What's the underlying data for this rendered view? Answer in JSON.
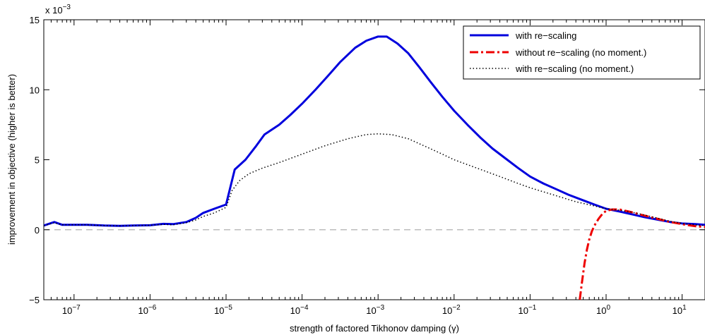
{
  "chart_data": {
    "type": "line",
    "xscale": "log",
    "xlim": [
      4e-08,
      20
    ],
    "ylim": [
      -5,
      15
    ],
    "y_multiplier_label": "x 10",
    "y_multiplier_exp": "−3",
    "xlabel": "strength of factored Tikhonov damping (γ)",
    "ylabel": "improvement in objective (higher is better)",
    "xticks": [
      {
        "value": 1e-07,
        "base": "10",
        "exp": "−7"
      },
      {
        "value": 1e-06,
        "base": "10",
        "exp": "−6"
      },
      {
        "value": 1e-05,
        "base": "10",
        "exp": "−5"
      },
      {
        "value": 0.0001,
        "base": "10",
        "exp": "−4"
      },
      {
        "value": 0.001,
        "base": "10",
        "exp": "−3"
      },
      {
        "value": 0.01,
        "base": "10",
        "exp": "−2"
      },
      {
        "value": 0.1,
        "base": "10",
        "exp": "−1"
      },
      {
        "value": 1,
        "base": "10",
        "exp": "0"
      },
      {
        "value": 10,
        "base": "10",
        "exp": "1"
      }
    ],
    "yticks": [
      {
        "value": -5,
        "label": "−5"
      },
      {
        "value": 0,
        "label": "0"
      },
      {
        "value": 5,
        "label": "5"
      },
      {
        "value": 10,
        "label": "10"
      },
      {
        "value": 15,
        "label": "15"
      }
    ],
    "reference_line": {
      "y": 0,
      "color": "#b0b0b0",
      "style": "dashed"
    },
    "legend_position": "top-right",
    "series": [
      {
        "name": "with re−scaling",
        "color": "#0000dd",
        "style": "solid",
        "points": [
          [
            4e-08,
            0.3
          ],
          [
            5.5e-08,
            0.55
          ],
          [
            7e-08,
            0.35
          ],
          [
            1e-07,
            0.35
          ],
          [
            1.5e-07,
            0.35
          ],
          [
            2.5e-07,
            0.3
          ],
          [
            4e-07,
            0.28
          ],
          [
            6e-07,
            0.3
          ],
          [
            1e-06,
            0.32
          ],
          [
            1.5e-06,
            0.42
          ],
          [
            2e-06,
            0.4
          ],
          [
            3e-06,
            0.55
          ],
          [
            4e-06,
            0.85
          ],
          [
            5e-06,
            1.2
          ],
          [
            7e-06,
            1.5
          ],
          [
            1e-05,
            1.8
          ],
          [
            1.3e-05,
            4.3
          ],
          [
            1.8e-05,
            5.0
          ],
          [
            2.5e-05,
            6.0
          ],
          [
            3.2e-05,
            6.8
          ],
          [
            5e-05,
            7.5
          ],
          [
            7e-05,
            8.2
          ],
          [
            0.0001,
            9.0
          ],
          [
            0.00015,
            10.0
          ],
          [
            0.00022,
            11.0
          ],
          [
            0.00032,
            12.0
          ],
          [
            0.0005,
            13.0
          ],
          [
            0.0007,
            13.5
          ],
          [
            0.001,
            13.8
          ],
          [
            0.0013,
            13.8
          ],
          [
            0.0018,
            13.3
          ],
          [
            0.0025,
            12.6
          ],
          [
            0.0035,
            11.6
          ],
          [
            0.005,
            10.5
          ],
          [
            0.007,
            9.5
          ],
          [
            0.01,
            8.5
          ],
          [
            0.015,
            7.5
          ],
          [
            0.022,
            6.6
          ],
          [
            0.032,
            5.8
          ],
          [
            0.05,
            5.0
          ],
          [
            0.07,
            4.4
          ],
          [
            0.1,
            3.8
          ],
          [
            0.15,
            3.3
          ],
          [
            0.22,
            2.9
          ],
          [
            0.32,
            2.5
          ],
          [
            0.5,
            2.1
          ],
          [
            0.7,
            1.8
          ],
          [
            1,
            1.5
          ],
          [
            1.5,
            1.3
          ],
          [
            2.2,
            1.1
          ],
          [
            3.2,
            0.9
          ],
          [
            5,
            0.7
          ],
          [
            7,
            0.55
          ],
          [
            10,
            0.45
          ],
          [
            15,
            0.4
          ],
          [
            20,
            0.35
          ]
        ]
      },
      {
        "name": "without re−scaling (no moment.)",
        "color": "#ee0000",
        "style": "dashdot",
        "points": [
          [
            0.45,
            -5
          ],
          [
            0.48,
            -3.8
          ],
          [
            0.52,
            -2.4
          ],
          [
            0.56,
            -1.4
          ],
          [
            0.6,
            -0.7
          ],
          [
            0.65,
            -0.1
          ],
          [
            0.72,
            0.4
          ],
          [
            0.8,
            0.8
          ],
          [
            0.9,
            1.15
          ],
          [
            1,
            1.35
          ],
          [
            1.2,
            1.45
          ],
          [
            1.5,
            1.45
          ],
          [
            2,
            1.3
          ],
          [
            3,
            1.05
          ],
          [
            5,
            0.75
          ],
          [
            7,
            0.55
          ],
          [
            10,
            0.4
          ],
          [
            15,
            0.25
          ],
          [
            20,
            0.2
          ]
        ]
      },
      {
        "name": "with re−scaling (no moment.)",
        "color": "#000000",
        "style": "dotted",
        "points": [
          [
            4e-08,
            0.3
          ],
          [
            5.5e-08,
            0.5
          ],
          [
            7e-08,
            0.35
          ],
          [
            1e-07,
            0.35
          ],
          [
            1.5e-07,
            0.35
          ],
          [
            2.5e-07,
            0.3
          ],
          [
            4e-07,
            0.28
          ],
          [
            6e-07,
            0.3
          ],
          [
            1e-06,
            0.32
          ],
          [
            1.5e-06,
            0.38
          ],
          [
            2e-06,
            0.35
          ],
          [
            3e-06,
            0.5
          ],
          [
            4e-06,
            0.7
          ],
          [
            5e-06,
            0.95
          ],
          [
            7e-06,
            1.2
          ],
          [
            1e-05,
            1.6
          ],
          [
            1.2e-05,
            2.8
          ],
          [
            1.5e-05,
            3.5
          ],
          [
            2e-05,
            4.0
          ],
          [
            3e-05,
            4.4
          ],
          [
            5e-05,
            4.8
          ],
          [
            0.0001,
            5.4
          ],
          [
            0.0002,
            6.0
          ],
          [
            0.0004,
            6.5
          ],
          [
            0.0007,
            6.8
          ],
          [
            0.001,
            6.85
          ],
          [
            0.0015,
            6.8
          ],
          [
            0.0025,
            6.5
          ],
          [
            0.004,
            6.0
          ],
          [
            0.007,
            5.4
          ],
          [
            0.01,
            5.0
          ],
          [
            0.02,
            4.4
          ],
          [
            0.04,
            3.8
          ],
          [
            0.07,
            3.3
          ],
          [
            0.1,
            3.0
          ],
          [
            0.2,
            2.5
          ],
          [
            0.4,
            2.0
          ],
          [
            0.7,
            1.7
          ],
          [
            1,
            1.5
          ],
          [
            1.5,
            1.4
          ],
          [
            2.2,
            1.25
          ],
          [
            3.2,
            1.05
          ],
          [
            5,
            0.8
          ],
          [
            7,
            0.6
          ],
          [
            10,
            0.45
          ],
          [
            15,
            0.35
          ],
          [
            20,
            0.3
          ]
        ]
      }
    ]
  }
}
